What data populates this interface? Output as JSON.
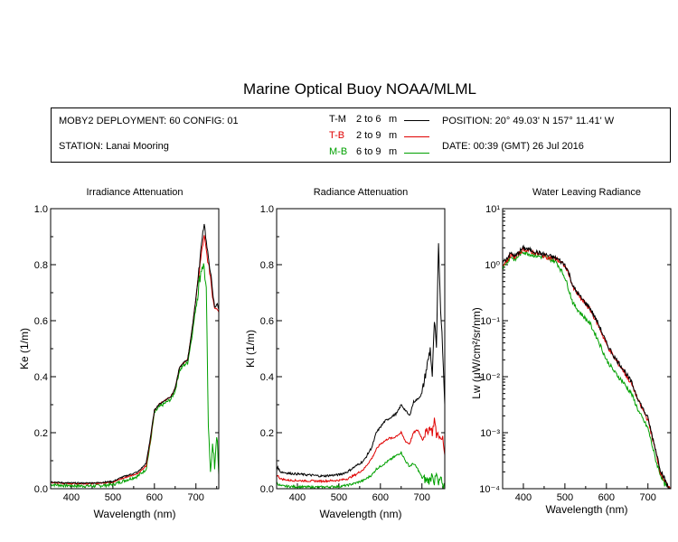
{
  "title": "Marine Optical Buoy NOAA/MLML",
  "info": {
    "deployment": "MOBY2 DEPLOYMENT: 60 CONFIG: 01",
    "station": "STATION: Lanai Mooring",
    "position": "POSITION: 20° 49.03' N   157° 11.41' W",
    "date": "DATE: 00:39 (GMT) 26 Jul 2016",
    "legend": [
      {
        "code": "T-M",
        "range": "2 to 6",
        "unit": "m",
        "color": "#000000"
      },
      {
        "code": "T-B",
        "range": "2 to 9",
        "unit": "m",
        "color": "#e00000"
      },
      {
        "code": "M-B",
        "range": "6 to 9",
        "unit": "m",
        "color": "#00a000"
      }
    ]
  },
  "chart_data": [
    {
      "type": "line",
      "title": "Irradiance Attenuation",
      "xlabel": "Wavelength (nm)",
      "ylabel": "Ke  (1/m)",
      "xlim": [
        350,
        755
      ],
      "ylim": [
        0,
        1.0
      ],
      "xticks": [
        "400",
        "500",
        "600",
        "700"
      ],
      "yticks": [
        "0.0",
        "0.2",
        "0.4",
        "0.6",
        "0.8",
        "1.0"
      ],
      "series": [
        {
          "name": "T-M",
          "color": "#000000",
          "noise": 0.005,
          "x": [
            350,
            380,
            420,
            460,
            500,
            520,
            540,
            560,
            580,
            590,
            600,
            610,
            620,
            640,
            650,
            660,
            670,
            680,
            690,
            700,
            710,
            715,
            720,
            725,
            730,
            735,
            740,
            745,
            750,
            755
          ],
          "y": [
            0.025,
            0.021,
            0.02,
            0.021,
            0.026,
            0.04,
            0.05,
            0.06,
            0.09,
            0.18,
            0.28,
            0.3,
            0.31,
            0.33,
            0.36,
            0.43,
            0.45,
            0.46,
            0.56,
            0.68,
            0.82,
            0.9,
            0.95,
            0.88,
            0.82,
            0.78,
            0.7,
            0.65,
            0.66,
            0.64
          ]
        },
        {
          "name": "T-B",
          "color": "#e00000",
          "noise": 0.005,
          "x": [
            350,
            380,
            420,
            460,
            500,
            520,
            540,
            560,
            580,
            590,
            600,
            610,
            620,
            640,
            650,
            660,
            670,
            680,
            690,
            700,
            710,
            715,
            720,
            725,
            730,
            735,
            740,
            745,
            750,
            755
          ],
          "y": [
            0.022,
            0.019,
            0.018,
            0.019,
            0.024,
            0.035,
            0.045,
            0.055,
            0.08,
            0.17,
            0.28,
            0.3,
            0.31,
            0.33,
            0.36,
            0.43,
            0.45,
            0.46,
            0.56,
            0.68,
            0.8,
            0.86,
            0.9,
            0.85,
            0.8,
            0.76,
            0.69,
            0.65,
            0.65,
            0.63
          ]
        },
        {
          "name": "M-B",
          "color": "#00a000",
          "noise": 0.012,
          "x": [
            350,
            380,
            420,
            460,
            500,
            520,
            540,
            560,
            580,
            590,
            600,
            610,
            620,
            640,
            650,
            660,
            670,
            680,
            690,
            700,
            710,
            715,
            720,
            725,
            730,
            735,
            740,
            745,
            750,
            755
          ],
          "y": [
            0.015,
            0.012,
            0.01,
            0.01,
            0.015,
            0.025,
            0.035,
            0.045,
            0.07,
            0.16,
            0.27,
            0.29,
            0.3,
            0.32,
            0.35,
            0.42,
            0.44,
            0.45,
            0.54,
            0.65,
            0.76,
            0.8,
            0.79,
            0.7,
            0.2,
            0.08,
            0.15,
            0.08,
            0.2,
            0.05
          ]
        }
      ]
    },
    {
      "type": "line",
      "title": "Radiance Attenuation",
      "xlabel": "Wavelength (nm)",
      "ylabel": "Kl  (1/m)",
      "xlim": [
        350,
        755
      ],
      "ylim": [
        0,
        1.0
      ],
      "xticks": [
        "400",
        "500",
        "600",
        "700"
      ],
      "yticks": [
        "0.0",
        "0.2",
        "0.4",
        "0.6",
        "0.8",
        "1.0"
      ],
      "series": [
        {
          "name": "T-M",
          "color": "#000000",
          "noise": 0.008,
          "x": [
            350,
            360,
            380,
            420,
            460,
            500,
            520,
            540,
            560,
            580,
            590,
            600,
            610,
            620,
            630,
            640,
            650,
            660,
            670,
            680,
            690,
            700,
            710,
            720,
            725,
            730,
            735,
            740,
            745,
            750,
            755
          ],
          "y": [
            0.08,
            0.06,
            0.055,
            0.05,
            0.045,
            0.05,
            0.06,
            0.08,
            0.1,
            0.15,
            0.2,
            0.22,
            0.24,
            0.25,
            0.26,
            0.27,
            0.3,
            0.28,
            0.26,
            0.31,
            0.32,
            0.34,
            0.42,
            0.5,
            0.4,
            0.6,
            0.5,
            0.87,
            0.65,
            0.5,
            0.3
          ]
        },
        {
          "name": "T-B",
          "color": "#e00000",
          "noise": 0.007,
          "x": [
            350,
            360,
            380,
            420,
            460,
            500,
            520,
            540,
            560,
            580,
            590,
            600,
            610,
            620,
            630,
            640,
            650,
            660,
            670,
            680,
            690,
            700,
            710,
            720,
            725,
            730,
            735,
            740,
            745,
            750,
            755
          ],
          "y": [
            0.05,
            0.035,
            0.03,
            0.028,
            0.027,
            0.03,
            0.035,
            0.05,
            0.07,
            0.11,
            0.14,
            0.16,
            0.17,
            0.18,
            0.18,
            0.19,
            0.2,
            0.17,
            0.16,
            0.2,
            0.21,
            0.18,
            0.2,
            0.22,
            0.2,
            0.25,
            0.19,
            0.2,
            0.17,
            0.18,
            0.12
          ]
        },
        {
          "name": "M-B",
          "color": "#00a000",
          "noise": 0.008,
          "x": [
            350,
            360,
            380,
            420,
            460,
            500,
            520,
            540,
            560,
            580,
            590,
            600,
            610,
            620,
            630,
            640,
            650,
            660,
            670,
            680,
            690,
            700,
            710,
            720,
            725,
            730,
            735,
            740,
            745,
            750,
            755
          ],
          "y": [
            0.02,
            0.01,
            0.008,
            0.006,
            0.006,
            0.008,
            0.012,
            0.02,
            0.03,
            0.05,
            0.07,
            0.08,
            0.09,
            0.1,
            0.11,
            0.12,
            0.13,
            0.1,
            0.08,
            0.09,
            0.07,
            0.04,
            0.03,
            0.03,
            0.06,
            0.02,
            0.05,
            0.01,
            0.04,
            0.0,
            0.02
          ]
        }
      ]
    },
    {
      "type": "line",
      "title": "Water Leaving Radiance",
      "xlabel": "Wavelength (nm)",
      "ylabel": "Lw  (μW/cm²/sr/nm)",
      "xlim": [
        350,
        755
      ],
      "ylim": [
        0.0001,
        10
      ],
      "yscale": "log",
      "xticks": [
        "400",
        "500",
        "600",
        "700"
      ],
      "yticks": [
        "10⁻⁴",
        "10⁻³",
        "10⁻²",
        "10⁻¹",
        "10⁰",
        "10¹"
      ],
      "series": [
        {
          "name": "T-M",
          "color": "#000000",
          "noise": 0.04,
          "x": [
            350,
            360,
            370,
            380,
            390,
            400,
            410,
            420,
            440,
            460,
            480,
            500,
            510,
            520,
            540,
            560,
            580,
            600,
            620,
            640,
            660,
            680,
            700,
            710,
            720,
            730,
            740,
            750,
            755
          ],
          "y": [
            1.1,
            1.3,
            1.6,
            1.4,
            1.7,
            2.0,
            1.9,
            1.8,
            1.6,
            1.45,
            1.3,
            1.0,
            0.7,
            0.4,
            0.25,
            0.17,
            0.09,
            0.04,
            0.022,
            0.014,
            0.008,
            0.0035,
            0.0018,
            0.0009,
            0.00045,
            0.00022,
            0.00015,
            0.0001,
            0.0001
          ]
        },
        {
          "name": "T-B",
          "color": "#e00000",
          "noise": 0.04,
          "x": [
            350,
            360,
            370,
            380,
            390,
            400,
            410,
            420,
            440,
            460,
            480,
            500,
            510,
            520,
            540,
            560,
            580,
            600,
            620,
            640,
            660,
            680,
            700,
            710,
            720,
            730,
            740,
            750,
            755
          ],
          "y": [
            1.0,
            1.2,
            1.5,
            1.35,
            1.6,
            1.9,
            1.8,
            1.7,
            1.5,
            1.35,
            1.25,
            0.95,
            0.68,
            0.38,
            0.24,
            0.16,
            0.085,
            0.038,
            0.021,
            0.013,
            0.0075,
            0.0033,
            0.0017,
            0.00085,
            0.00042,
            0.0002,
            0.00014,
            0.0001,
            0.0001
          ]
        },
        {
          "name": "M-B",
          "color": "#00a000",
          "noise": 0.04,
          "x": [
            350,
            360,
            370,
            380,
            390,
            400,
            410,
            420,
            440,
            460,
            480,
            500,
            510,
            520,
            540,
            560,
            580,
            600,
            620,
            640,
            660,
            680,
            700,
            710,
            720,
            730,
            740,
            750,
            755
          ],
          "y": [
            0.9,
            1.1,
            1.4,
            1.2,
            1.5,
            1.7,
            1.6,
            1.5,
            1.4,
            1.3,
            1.1,
            0.6,
            0.35,
            0.2,
            0.13,
            0.09,
            0.045,
            0.02,
            0.012,
            0.008,
            0.005,
            0.0022,
            0.0012,
            0.0006,
            0.0003,
            0.00018,
            0.00012,
            0.0001,
            0.0001
          ]
        }
      ]
    }
  ]
}
